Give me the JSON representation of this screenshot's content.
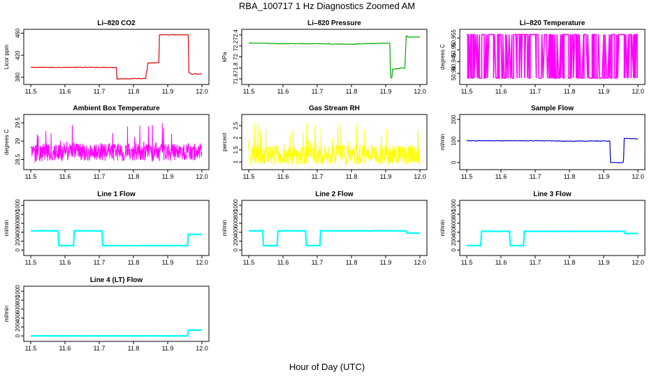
{
  "figure": {
    "title": "RBA_100717  1 Hz Diagnostics Zoomed AM",
    "xlabel": "Hour of Day (UTC)"
  },
  "chart_data": [
    {
      "type": "line",
      "title": "Li–820 CO2",
      "ylabel": "Licor ppm",
      "color": "#dd0000",
      "xlim": [
        11.5,
        12.0
      ],
      "ylim": [
        372,
        462
      ],
      "xticks": [
        11.5,
        11.6,
        11.7,
        11.8,
        11.9,
        12.0
      ],
      "yticks": [
        380,
        420,
        460
      ],
      "series": [
        {
          "x": [
            11.5,
            11.75,
            11.752,
            11.836,
            11.838,
            11.84,
            11.842,
            11.874,
            11.876,
            11.96,
            11.962,
            11.97,
            12.0
          ],
          "values": [
            398,
            398,
            377,
            378,
            390,
            392,
            406,
            406,
            457,
            457,
            388,
            386,
            386
          ]
        }
      ]
    },
    {
      "type": "line",
      "title": "Li–820 Pressure",
      "ylabel": "kPa",
      "color": "#00aa00",
      "xlim": [
        11.5,
        12.0
      ],
      "ylim": [
        71.55,
        72.45
      ],
      "xticks": [
        11.5,
        11.6,
        11.7,
        11.8,
        11.9,
        12.0
      ],
      "yticks": [
        71.6,
        71.8,
        72.0,
        72.2,
        72.4
      ],
      "series": [
        {
          "x": [
            11.5,
            11.6,
            11.7,
            11.8,
            11.85,
            11.9,
            11.912,
            11.914,
            11.916,
            11.918,
            11.92,
            11.94,
            11.942,
            11.956,
            11.96,
            11.962,
            11.97,
            12.0
          ],
          "values": [
            72.25,
            72.24,
            72.24,
            72.23,
            72.24,
            72.25,
            72.25,
            71.65,
            71.62,
            71.62,
            71.78,
            71.79,
            71.8,
            71.8,
            72.38,
            72.38,
            72.36,
            72.36
          ]
        }
      ]
    },
    {
      "type": "line",
      "title": "Li–820 Temperature",
      "ylabel": "degrees C",
      "color": "#ff00ff",
      "xlim": [
        11.5,
        12.0
      ],
      "ylim": [
        50.9365,
        50.9575
      ],
      "xticks": [
        11.5,
        11.6,
        11.7,
        11.8,
        11.9,
        12.0
      ],
      "yticks": [
        50.94,
        50.945,
        50.95,
        50.955
      ],
      "series": [
        {
          "name": "",
          "values": [
            50.938,
            50.9565
          ]
        }
      ]
    },
    {
      "type": "line",
      "title": "Ambient Box Temperature",
      "ylabel": "degrees C",
      "color": "#ff00ff",
      "xlim": [
        11.5,
        12.0
      ],
      "ylim": [
        28.3,
        29.65
      ],
      "xticks": [
        11.5,
        11.6,
        11.7,
        11.8,
        11.9,
        12.0
      ],
      "yticks": [
        28.5,
        29.0,
        29.5
      ],
      "series": [
        {
          "name": "",
          "values": [
            28.7,
            29.5,
            28.4
          ]
        }
      ]
    },
    {
      "type": "line",
      "title": "Gas Stream RH",
      "ylabel": "percent",
      "color": "#ffff00",
      "xlim": [
        11.5,
        12.0
      ],
      "ylim": [
        0.8,
        2.85
      ],
      "xticks": [
        11.5,
        11.6,
        11.7,
        11.8,
        11.9,
        12.0
      ],
      "yticks": [
        1.0,
        1.5,
        2.0,
        2.5
      ],
      "series": [
        {
          "name": "",
          "values": [
            1.3,
            2.7,
            0.9
          ]
        }
      ]
    },
    {
      "type": "line",
      "title": "Sample Flow",
      "ylabel": "ml/min",
      "color": "#0000cc",
      "xlim": [
        11.5,
        12.0
      ],
      "ylim": [
        -20,
        210
      ],
      "xticks": [
        11.5,
        11.6,
        11.7,
        11.8,
        11.9,
        12.0
      ],
      "yticks": [
        0,
        100,
        200
      ],
      "series": [
        {
          "x": [
            11.5,
            11.75,
            11.78,
            11.9,
            11.918,
            11.92,
            11.955,
            11.958,
            11.96,
            12.0
          ],
          "values": [
            101,
            101,
            99,
            100,
            100,
            0,
            0,
            5,
            112,
            110
          ]
        }
      ]
    },
    {
      "type": "line",
      "title": "Line 1 Flow",
      "ylabel": "ml/min",
      "color": "#00ffff",
      "xlim": [
        11.5,
        12.0
      ],
      "ylim": [
        -60,
        1050
      ],
      "xticks": [
        11.5,
        11.6,
        11.7,
        11.8,
        11.9,
        12.0
      ],
      "yticks": [
        0,
        200,
        400,
        600,
        800,
        1000
      ],
      "series": [
        {
          "x": [
            11.5,
            11.58,
            11.582,
            11.625,
            11.627,
            11.708,
            11.71,
            11.958,
            11.96,
            12.0
          ],
          "values": [
            430,
            430,
            100,
            100,
            430,
            430,
            100,
            100,
            350,
            350
          ]
        }
      ]
    },
    {
      "type": "line",
      "title": "Line 2 Flow",
      "ylabel": "ml/min",
      "color": "#00ffff",
      "xlim": [
        11.5,
        12.0
      ],
      "ylim": [
        -60,
        1050
      ],
      "xticks": [
        11.5,
        11.6,
        11.7,
        11.8,
        11.9,
        12.0
      ],
      "yticks": [
        0,
        200,
        400,
        600,
        800,
        1000
      ],
      "series": [
        {
          "x": [
            11.5,
            11.541,
            11.543,
            11.583,
            11.585,
            11.666,
            11.668,
            11.708,
            11.71,
            11.96,
            11.962,
            12.0
          ],
          "values": [
            430,
            430,
            100,
            100,
            430,
            430,
            100,
            100,
            430,
            430,
            380,
            380
          ]
        }
      ]
    },
    {
      "type": "line",
      "title": "Line 3 Flow",
      "ylabel": "ml/min",
      "color": "#00ffff",
      "xlim": [
        11.5,
        12.0
      ],
      "ylim": [
        -60,
        1050
      ],
      "xticks": [
        11.5,
        11.6,
        11.7,
        11.8,
        11.9,
        12.0
      ],
      "yticks": [
        0,
        200,
        400,
        600,
        800,
        1000
      ],
      "series": [
        {
          "x": [
            11.5,
            11.541,
            11.543,
            11.625,
            11.627,
            11.666,
            11.668,
            11.96,
            11.962,
            12.0
          ],
          "values": [
            100,
            100,
            420,
            420,
            100,
            100,
            420,
            420,
            370,
            370
          ]
        }
      ]
    },
    {
      "type": "line",
      "title": "Line 4 (LT) Flow",
      "ylabel": "ml/min",
      "color": "#00ffff",
      "xlim": [
        11.5,
        12.0
      ],
      "ylim": [
        -60,
        1050
      ],
      "xticks": [
        11.5,
        11.6,
        11.7,
        11.8,
        11.9,
        12.0
      ],
      "yticks": [
        0,
        200,
        400,
        600,
        800,
        1000
      ],
      "series": [
        {
          "x": [
            11.5,
            11.958,
            11.96,
            12.0
          ],
          "values": [
            0,
            0,
            130,
            130
          ]
        }
      ]
    }
  ]
}
